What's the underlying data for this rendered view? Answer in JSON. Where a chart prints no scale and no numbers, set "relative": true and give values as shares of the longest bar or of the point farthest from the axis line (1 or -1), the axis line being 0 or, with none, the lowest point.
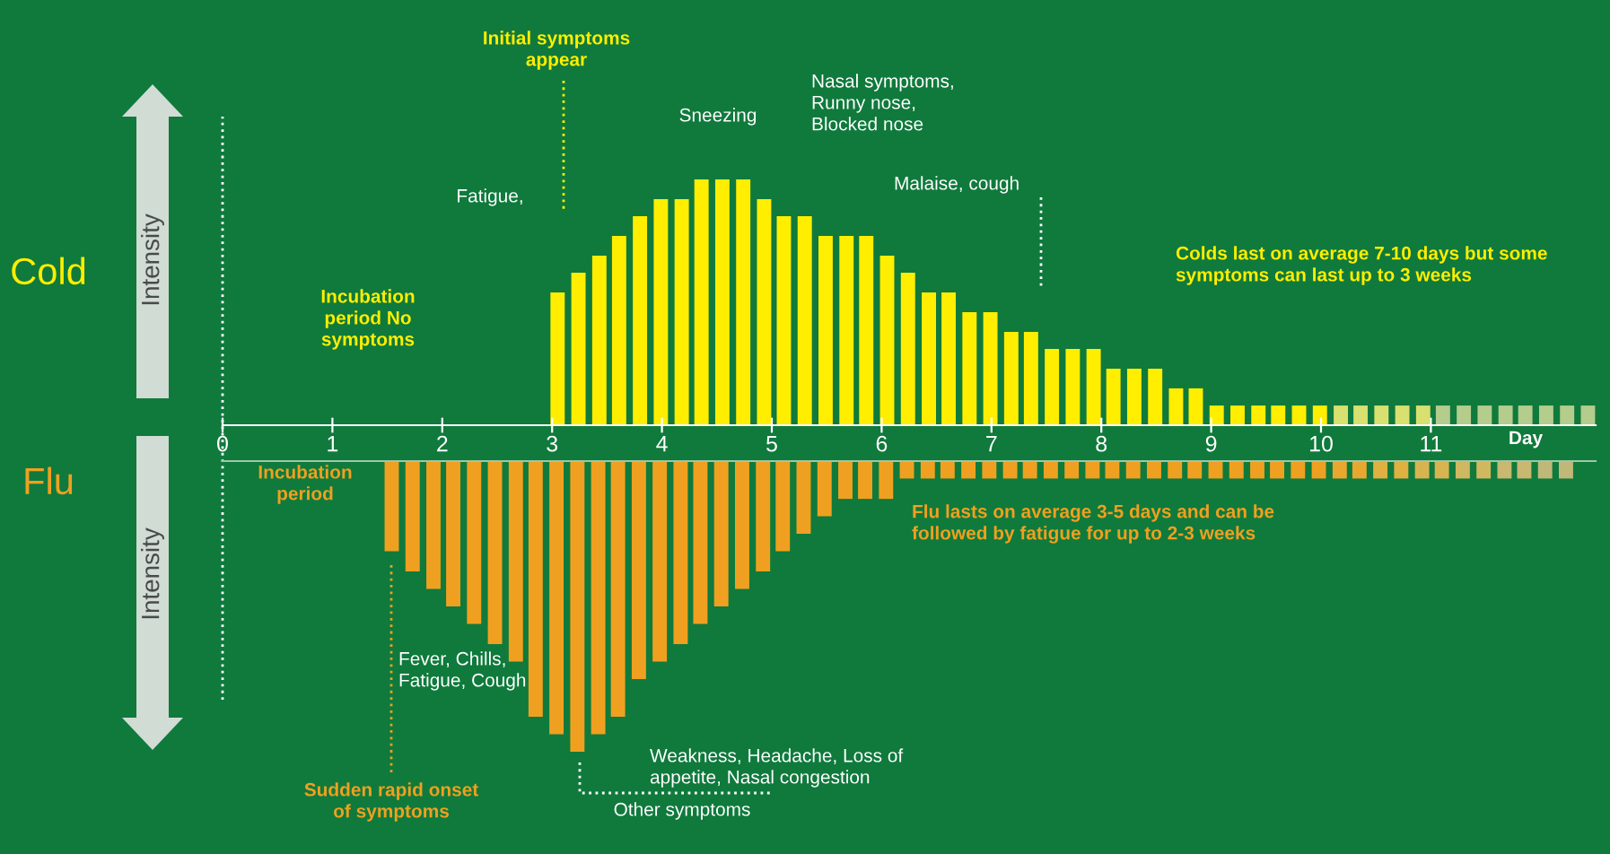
{
  "chart_data": [
    {
      "type": "bar",
      "relative": true,
      "xlabel": "Day",
      "xlim": [
        0,
        12.5
      ],
      "xticks": [
        0,
        1,
        2,
        3,
        4,
        5,
        6,
        7,
        8,
        9,
        10,
        11
      ],
      "ref_lines": [
        {
          "axis": "x",
          "value": 0,
          "line_style": "dotted",
          "color": "#ffffff"
        }
      ],
      "series": [
        {
          "name": "Cold",
          "color": "#ffee00",
          "x": [
            3.05,
            3.24,
            3.43,
            3.61,
            3.8,
            3.99,
            4.18,
            4.36,
            4.55,
            4.74,
            4.93,
            5.11,
            5.3,
            5.49,
            5.68,
            5.86,
            6.05,
            6.24,
            6.43,
            6.61,
            6.8,
            6.99,
            7.18,
            7.36,
            7.55,
            7.74,
            7.93,
            8.11,
            8.3,
            8.49,
            8.68,
            8.86,
            9.05,
            9.24,
            9.43,
            9.61,
            9.8,
            9.99,
            10.18,
            10.36,
            10.55,
            10.74,
            10.93,
            11.11,
            11.3,
            11.49,
            11.68,
            11.86,
            12.05,
            12.24,
            12.43
          ],
          "values": [
            0.54,
            0.62,
            0.69,
            0.77,
            0.85,
            0.92,
            0.92,
            1,
            1,
            1,
            0.92,
            0.85,
            0.85,
            0.77,
            0.77,
            0.77,
            0.69,
            0.62,
            0.54,
            0.54,
            0.46,
            0.46,
            0.38,
            0.38,
            0.31,
            0.31,
            0.31,
            0.23,
            0.23,
            0.23,
            0.15,
            0.15,
            0.08,
            0.08,
            0.08,
            0.08,
            0.08,
            0.08,
            0.08,
            0.08,
            0.08,
            0.08,
            0.08,
            0.08,
            0.08,
            0.08,
            0.08,
            0.08,
            0.08,
            0.08,
            0.08
          ],
          "colors": [
            "#ffee00",
            "#ffee00",
            "#ffee00",
            "#ffee00",
            "#ffee00",
            "#ffee00",
            "#ffee00",
            "#ffee00",
            "#ffee00",
            "#ffee00",
            "#ffee00",
            "#ffee00",
            "#ffee00",
            "#ffee00",
            "#ffee00",
            "#ffee00",
            "#ffee00",
            "#ffee00",
            "#ffee00",
            "#ffee00",
            "#ffee00",
            "#ffee00",
            "#ffee00",
            "#ffee00",
            "#ffee00",
            "#ffee00",
            "#ffee00",
            "#ffee00",
            "#ffee00",
            "#ffee00",
            "#ffee00",
            "#ffee00",
            "#ffee00",
            "#ffee00",
            "#ffee00",
            "#ffee00",
            "#ffee00",
            "#ffee00",
            "#d8e070",
            "#d8e070",
            "#d8e070",
            "#d8e070",
            "#d8e070",
            "#b4cc8c",
            "#b4cc8c",
            "#b4cc8c",
            "#b4cc8c",
            "#b4cc8c",
            "#b4cc8c",
            "#b4cc8c",
            "#b4cc8c"
          ]
        }
      ],
      "annotations": [
        "Initial symptoms\nappear",
        "Fatigue,",
        "Sneezing",
        "Nasal symptoms,\nRunny nose,\nBlocked nose",
        "Malaise, cough",
        "Incubation\nperiod No\nsymptoms",
        "Colds last on average 7-10 days but some\nsymptoms can last up to 3 weeks",
        "Intensity"
      ]
    },
    {
      "type": "bar",
      "relative": true,
      "xlim": [
        0,
        12.5
      ],
      "series": [
        {
          "name": "Flu",
          "color": "#f0a020",
          "x": [
            1.54,
            1.73,
            1.92,
            2.1,
            2.29,
            2.48,
            2.67,
            2.85,
            3.04,
            3.23,
            3.42,
            3.6,
            3.79,
            3.98,
            4.17,
            4.35,
            4.54,
            4.73,
            4.92,
            5.1,
            5.29,
            5.48,
            5.67,
            5.85,
            6.04,
            6.23,
            6.42,
            6.6,
            6.79,
            6.98,
            7.17,
            7.35,
            7.54,
            7.73,
            7.92,
            8.1,
            8.29,
            8.48,
            8.67,
            8.85,
            9.04,
            9.23,
            9.42,
            9.6,
            9.79,
            9.98,
            10.17,
            10.35,
            10.54,
            10.73,
            10.92,
            11.1,
            11.29,
            11.48,
            11.67,
            11.85,
            12.04,
            12.23
          ],
          "values": [
            -0.31,
            -0.38,
            -0.44,
            -0.5,
            -0.56,
            -0.63,
            -0.69,
            -0.88,
            -0.94,
            -1,
            -0.94,
            -0.88,
            -0.75,
            -0.69,
            -0.63,
            -0.56,
            -0.5,
            -0.44,
            -0.38,
            -0.31,
            -0.25,
            -0.19,
            -0.13,
            -0.13,
            -0.13,
            -0.06,
            -0.06,
            -0.06,
            -0.06,
            -0.06,
            -0.06,
            -0.06,
            -0.06,
            -0.06,
            -0.06,
            -0.06,
            -0.06,
            -0.06,
            -0.06,
            -0.06,
            -0.06,
            -0.06,
            -0.06,
            -0.06,
            -0.06,
            -0.06,
            -0.06,
            -0.06,
            -0.06,
            -0.06,
            -0.06,
            -0.06,
            -0.06,
            -0.06,
            -0.06,
            -0.06,
            -0.06,
            -0.06
          ],
          "colors": [
            "#f0a020",
            "#f0a020",
            "#f0a020",
            "#f0a020",
            "#f0a020",
            "#f0a020",
            "#f0a020",
            "#f0a020",
            "#f0a020",
            "#f0a020",
            "#f0a020",
            "#f0a020",
            "#f0a020",
            "#f0a020",
            "#f0a020",
            "#f0a020",
            "#f0a020",
            "#f0a020",
            "#f0a020",
            "#f0a020",
            "#f0a020",
            "#f0a020",
            "#f0a020",
            "#f0a020",
            "#f0a020",
            "#f0a020",
            "#f0a020",
            "#f0a020",
            "#f0a020",
            "#f0a020",
            "#f0a020",
            "#f0a020",
            "#f0a020",
            "#f0a020",
            "#f0a020",
            "#f0a020",
            "#f0a020",
            "#f0a020",
            "#f0a020",
            "#f0a020",
            "#f0a020",
            "#f0a020",
            "#f0a020",
            "#f0a020",
            "#f0a020",
            "#f0a020",
            "#e8a830",
            "#e8a830",
            "#e0b040",
            "#e0b040",
            "#d8b450",
            "#d8b450",
            "#d0b860",
            "#d0b860",
            "#c8b870",
            "#c8b870",
            "#c0b878",
            "#c0b878"
          ]
        }
      ],
      "annotations": [
        "Incubation\nperiod",
        "Fever, Chills,\nFatigue, Cough",
        "Sudden rapid onset\nof symptoms",
        "Weakness, Headache, Loss of\nappetite, Nasal congestion",
        "Other symptoms",
        "Flu lasts on average 3-5 days and can be\nfollowed by fatigue for up to 2-3 weeks",
        "Intensity"
      ]
    }
  ]
}
